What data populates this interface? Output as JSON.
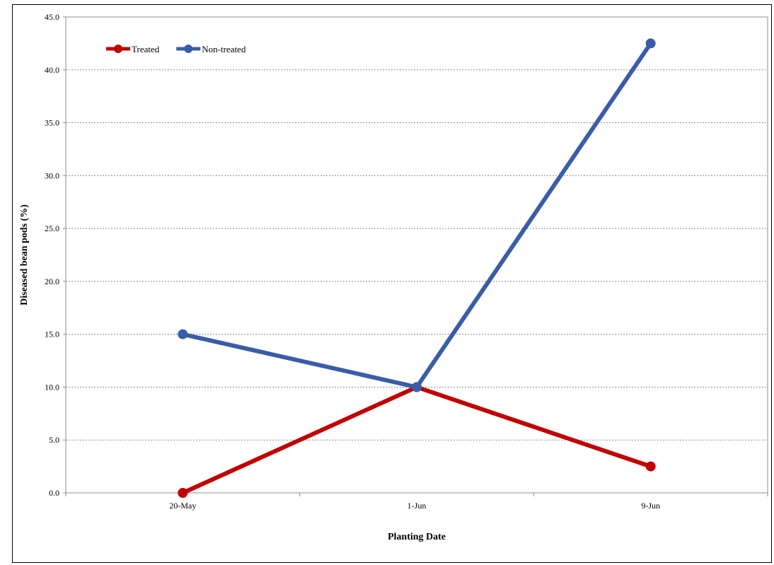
{
  "chart_data": {
    "type": "line",
    "title": "",
    "xlabel": "Planting Date",
    "ylabel": "Diseased bean pods (%)",
    "categories": [
      "20-May",
      "1-Jun",
      "9-Jun"
    ],
    "ylim": [
      0,
      45
    ],
    "yticks": [
      0,
      5,
      10,
      15,
      20,
      25,
      30,
      35,
      40,
      45
    ],
    "ytick_labels": [
      "0.0",
      "5.0",
      "10.0",
      "15.0",
      "20.0",
      "25.0",
      "30.0",
      "35.0",
      "40.0",
      "45.0"
    ],
    "grid": "horizontal dashed",
    "legend_position": "top-left",
    "series": [
      {
        "name": "Treated",
        "values": [
          0,
          10,
          2.5
        ],
        "color": "#c00000"
      },
      {
        "name": "Non-treated",
        "values": [
          15,
          10,
          42.5
        ],
        "color": "#3a5da8"
      }
    ]
  }
}
